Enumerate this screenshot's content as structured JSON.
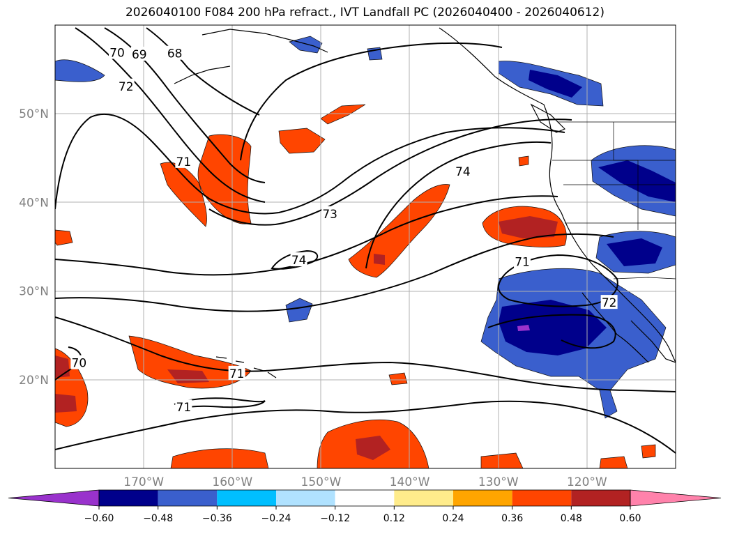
{
  "title": "2026040100 F084 200 hPa refract., IVT Landfall PC (2026040400 - 2026040612)",
  "map": {
    "lon_range": [
      -180,
      -110
    ],
    "lat_range": [
      10,
      60
    ],
    "lon_ticks": [
      {
        "lon": -170,
        "label": "170°W"
      },
      {
        "lon": -160,
        "label": "160°W"
      },
      {
        "lon": -150,
        "label": "150°W"
      },
      {
        "lon": -140,
        "label": "140°W"
      },
      {
        "lon": -130,
        "label": "130°W"
      },
      {
        "lon": -120,
        "label": "120°W"
      }
    ],
    "lat_ticks": [
      {
        "lat": 50,
        "label": "50°N"
      },
      {
        "lat": 40,
        "label": "40°N"
      },
      {
        "lat": 30,
        "label": "30°N"
      },
      {
        "lat": 20,
        "label": "20°N"
      }
    ],
    "grid": true,
    "contour_labels": [
      {
        "text": "70",
        "lon": -173.0,
        "lat": 56.9
      },
      {
        "text": "69",
        "lon": -170.5,
        "lat": 56.7
      },
      {
        "text": "68",
        "lon": -166.5,
        "lat": 56.8
      },
      {
        "text": "72",
        "lon": -172.0,
        "lat": 53.1
      },
      {
        "text": "71",
        "lon": -165.5,
        "lat": 44.6
      },
      {
        "text": "74",
        "lon": -134.0,
        "lat": 43.5
      },
      {
        "text": "73",
        "lon": -149.0,
        "lat": 38.7
      },
      {
        "text": "74",
        "lon": -152.5,
        "lat": 33.5
      },
      {
        "text": "71",
        "lon": -127.3,
        "lat": 33.3
      },
      {
        "text": "72",
        "lon": -117.5,
        "lat": 28.7
      },
      {
        "text": "71",
        "lon": -159.5,
        "lat": 20.7
      },
      {
        "text": "70",
        "lon": -177.3,
        "lat": 21.9
      },
      {
        "text": "71",
        "lon": -165.5,
        "lat": 16.9
      }
    ]
  },
  "colorbar": {
    "colors": [
      "#9932cc",
      "#00008b",
      "#3a5fcd",
      "#00bfff",
      "#b0e2ff",
      "#ffffff",
      "#ffec8b",
      "#ffa500",
      "#ff4500",
      "#b22222",
      "#ff82ab"
    ],
    "tick_labels": [
      "−0.60",
      "−0.48",
      "−0.36",
      "−0.24",
      "−0.12",
      "0.12",
      "0.24",
      "0.36",
      "0.48",
      "0.60"
    ],
    "extend": "both"
  }
}
